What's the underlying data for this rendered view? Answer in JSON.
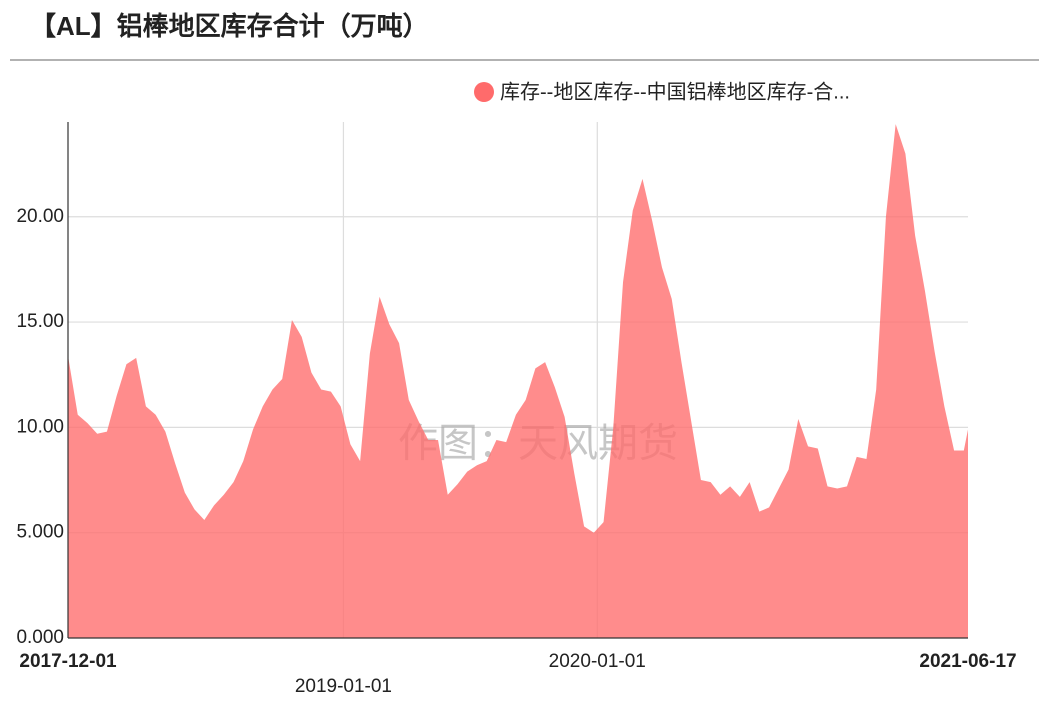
{
  "chart_data": {
    "type": "area",
    "title": "【AL】铝棒地区库存合计（万吨）",
    "watermark": "作图：天风期货",
    "x": [
      "2017-12-01",
      "2017-12-15",
      "2017-12-29",
      "2018-01-12",
      "2018-01-26",
      "2018-02-09",
      "2018-02-23",
      "2018-03-09",
      "2018-03-23",
      "2018-04-06",
      "2018-04-20",
      "2018-05-04",
      "2018-05-18",
      "2018-06-01",
      "2018-06-15",
      "2018-06-29",
      "2018-07-13",
      "2018-07-27",
      "2018-08-10",
      "2018-08-24",
      "2018-09-07",
      "2018-09-21",
      "2018-10-05",
      "2018-10-19",
      "2018-11-02",
      "2018-11-16",
      "2018-11-30",
      "2018-12-14",
      "2018-12-28",
      "2019-01-11",
      "2019-01-25",
      "2019-02-08",
      "2019-02-22",
      "2019-03-08",
      "2019-03-22",
      "2019-04-05",
      "2019-04-19",
      "2019-05-03",
      "2019-05-17",
      "2019-05-31",
      "2019-06-14",
      "2019-06-28",
      "2019-07-12",
      "2019-07-26",
      "2019-08-09",
      "2019-08-23",
      "2019-09-06",
      "2019-09-20",
      "2019-10-04",
      "2019-10-18",
      "2019-11-01",
      "2019-11-15",
      "2019-11-29",
      "2019-12-13",
      "2019-12-27",
      "2020-01-10",
      "2020-01-24",
      "2020-02-07",
      "2020-02-21",
      "2020-03-06",
      "2020-03-20",
      "2020-04-03",
      "2020-04-17",
      "2020-05-01",
      "2020-05-15",
      "2020-05-29",
      "2020-06-12",
      "2020-06-26",
      "2020-07-10",
      "2020-07-24",
      "2020-08-07",
      "2020-08-21",
      "2020-09-04",
      "2020-09-18",
      "2020-10-02",
      "2020-10-16",
      "2020-10-30",
      "2020-11-13",
      "2020-11-27",
      "2020-12-11",
      "2020-12-25",
      "2021-01-08",
      "2021-01-22",
      "2021-02-05",
      "2021-02-19",
      "2021-03-05",
      "2021-03-19",
      "2021-04-02",
      "2021-04-16",
      "2021-04-30",
      "2021-05-14",
      "2021-05-28",
      "2021-06-11",
      "2021-06-17"
    ],
    "series": [
      {
        "name": "库存--地区库存--中国铝棒地区库存-合...",
        "color": "#ff6b6b",
        "values": [
          13.4,
          10.6,
          10.2,
          9.7,
          9.8,
          11.5,
          13.0,
          13.3,
          11.0,
          10.6,
          9.8,
          8.3,
          6.9,
          6.1,
          5.6,
          6.3,
          6.8,
          7.4,
          8.4,
          9.9,
          11.0,
          11.8,
          12.3,
          15.1,
          14.3,
          12.6,
          11.8,
          11.7,
          11.0,
          9.2,
          8.4,
          13.5,
          16.2,
          14.9,
          14.0,
          11.3,
          10.3,
          9.4,
          9.4,
          6.8,
          7.3,
          7.9,
          8.2,
          8.4,
          9.4,
          9.3,
          10.6,
          11.3,
          12.8,
          13.1,
          11.9,
          10.5,
          7.8,
          5.3,
          5.0,
          5.5,
          10.0,
          16.9,
          20.3,
          21.8,
          19.8,
          17.6,
          16.1,
          13.1,
          10.3,
          7.5,
          7.4,
          6.8,
          7.2,
          6.7,
          7.4,
          6.0,
          6.2,
          7.1,
          8.0,
          10.4,
          9.1,
          9.0,
          7.2,
          7.1,
          7.2,
          8.6,
          8.5,
          11.8,
          20.0,
          24.4,
          23.0,
          19.1,
          16.5,
          13.6,
          11.0,
          8.9,
          8.9,
          9.9
        ]
      }
    ],
    "xlim": [
      "2017-12-01",
      "2021-06-17"
    ],
    "xticks": [
      "2017-12-01",
      "2019-01-01",
      "2020-01-01",
      "2021-06-17"
    ],
    "ylim": [
      0,
      24.5
    ],
    "yticks": [
      {
        "value": 0,
        "label": "0.000"
      },
      {
        "value": 5,
        "label": "5.000"
      },
      {
        "value": 10,
        "label": "10.00"
      },
      {
        "value": 15,
        "label": "15.00"
      },
      {
        "value": 20,
        "label": "20.00"
      }
    ],
    "grid": true
  }
}
